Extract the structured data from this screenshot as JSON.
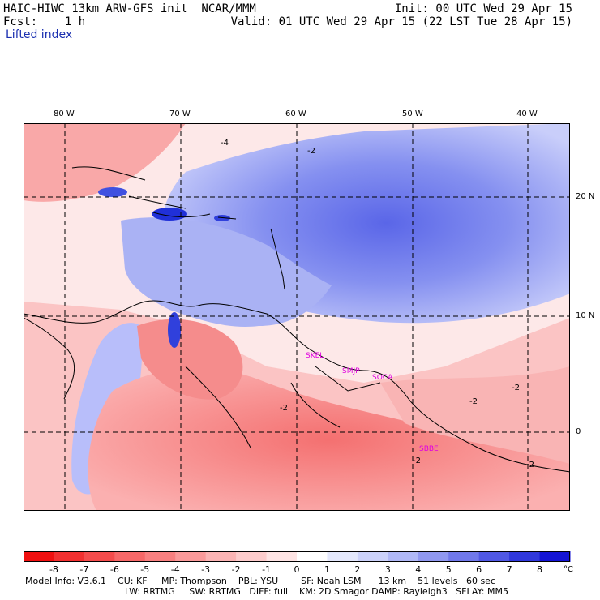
{
  "header": {
    "model_title": "HAIC-HIWC 13km ARW-GFS init  NCAR/MMM",
    "init": "Init: 00 UTC Wed 29 Apr 15",
    "fcst": "Fcst:    1 h",
    "valid": "Valid: 01 UTC Wed 29 Apr 15 (22 LST Tue 28 Apr 15)",
    "field": "Lifted index"
  },
  "map": {
    "lon_labels": [
      "80 W",
      "70 W",
      "60 W",
      "50 W",
      "40 W"
    ],
    "lat_labels": [
      "20 N",
      "10 N",
      "0"
    ],
    "stations": [
      "SKEL",
      "SMJP",
      "SOCA",
      "SBBE"
    ],
    "contour_labels": [
      "-4",
      "-2",
      "-2",
      "-2",
      "-2",
      "-2",
      "-2"
    ],
    "colors": {
      "negative_strong": "#f01818",
      "negative_light": "#fde0e0",
      "positive_light": "#e8ecfd",
      "positive_strong": "#1010e0",
      "station": "#e000e0",
      "grid": "#000000"
    }
  },
  "colorbar": {
    "ticks": [
      "-8",
      "-7",
      "-6",
      "-5",
      "-4",
      "-3",
      "-2",
      "-1",
      "0",
      "1",
      "2",
      "3",
      "4",
      "5",
      "6",
      "7",
      "8"
    ],
    "unit": "°C",
    "colors": [
      "#f01010",
      "#f23030",
      "#f44c4c",
      "#f66868",
      "#f88080",
      "#fa9a9a",
      "#fbb4b4",
      "#fdcccc",
      "#fee4e4",
      "#ffffff",
      "#e4e8fc",
      "#ccd2fa",
      "#b0b8f6",
      "#9098f0",
      "#7078ea",
      "#5058e4",
      "#3038dc",
      "#1414d4"
    ]
  },
  "footer": {
    "line1": "Model Info: V3.6.1    CU: KF     MP: Thompson    PBL: YSU        SF: Noah LSM      13 km    51 levels   60 sec",
    "line2": "LW: RRTMG     SW: RRTMG   DIFF: full    KM: 2D Smagor DAMP: Rayleigh3   SFLAY: MM5"
  }
}
